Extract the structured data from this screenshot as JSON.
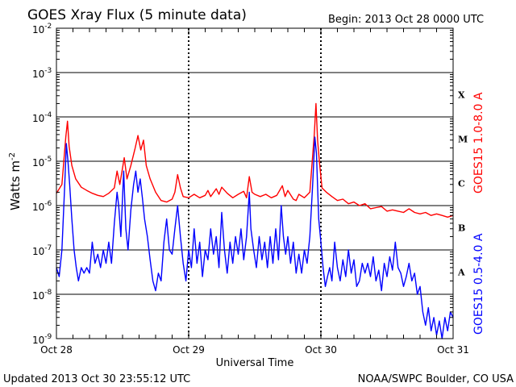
{
  "chart_data": {
    "type": "line",
    "title": "GOES Xray Flux (5 minute data)",
    "begin_label": "Begin:  2013 Oct 28 0000 UTC",
    "ylabel_base": "Watts m",
    "ylabel_exp": "-2",
    "xlabel": "Universal Time",
    "y_scale": "log",
    "ylim": [
      1e-09,
      0.01
    ],
    "xlim_hours": [
      0,
      72
    ],
    "x_ticks": [
      {
        "hour": 0,
        "label": "Oct 28"
      },
      {
        "hour": 24,
        "label": "Oct 29"
      },
      {
        "hour": 48,
        "label": "Oct 30"
      },
      {
        "hour": 72,
        "label": "Oct 31"
      }
    ],
    "y_ticks": [
      {
        "exp": -2,
        "base": "10",
        "sup": "-2"
      },
      {
        "exp": -3,
        "base": "10",
        "sup": "-3"
      },
      {
        "exp": -4,
        "base": "10",
        "sup": "-4"
      },
      {
        "exp": -5,
        "base": "10",
        "sup": "-5"
      },
      {
        "exp": -6,
        "base": "10",
        "sup": "-6"
      },
      {
        "exp": -7,
        "base": "10",
        "sup": "-7"
      },
      {
        "exp": -8,
        "base": "10",
        "sup": "-8"
      },
      {
        "exp": -9,
        "base": "10",
        "sup": "-9"
      }
    ],
    "flare_classes": [
      {
        "label": "X",
        "exp": -3.5
      },
      {
        "label": "M",
        "exp": -4.5
      },
      {
        "label": "C",
        "exp": -5.5
      },
      {
        "label": "B",
        "exp": -6.5
      },
      {
        "label": "A",
        "exp": -7.5
      }
    ],
    "grid": "horizontal at decades",
    "series": [
      {
        "name": "GOES15 1.0-8.0 A",
        "color": "#ff0000",
        "points": [
          [
            0,
            1.9e-06
          ],
          [
            1,
            3e-06
          ],
          [
            1.7,
            3.5e-05
          ],
          [
            2.0,
            8e-05
          ],
          [
            2.3,
            2.2e-05
          ],
          [
            2.8,
            8e-06
          ],
          [
            3.5,
            4e-06
          ],
          [
            4.5,
            2.6e-06
          ],
          [
            5.5,
            2.2e-06
          ],
          [
            6.5,
            1.9e-06
          ],
          [
            7.5,
            1.7e-06
          ],
          [
            8.5,
            1.6e-06
          ],
          [
            9.5,
            1.9e-06
          ],
          [
            10.5,
            2.5e-06
          ],
          [
            11.0,
            6e-06
          ],
          [
            11.5,
            3e-06
          ],
          [
            12.3,
            1.2e-05
          ],
          [
            12.8,
            4e-06
          ],
          [
            13.5,
            8e-06
          ],
          [
            14.3,
            2e-05
          ],
          [
            14.8,
            3.8e-05
          ],
          [
            15.3,
            1.8e-05
          ],
          [
            15.8,
            3e-05
          ],
          [
            16.3,
            8e-06
          ],
          [
            17.0,
            4e-06
          ],
          [
            18.0,
            2e-06
          ],
          [
            19.0,
            1.3e-06
          ],
          [
            20.0,
            1.2e-06
          ],
          [
            21.0,
            1.4e-06
          ],
          [
            21.5,
            2e-06
          ],
          [
            22.0,
            5e-06
          ],
          [
            22.5,
            2.5e-06
          ],
          [
            23.0,
            1.6e-06
          ],
          [
            24.0,
            1.5e-06
          ],
          [
            25.0,
            1.8e-06
          ],
          [
            26.0,
            1.5e-06
          ],
          [
            27.0,
            1.7e-06
          ],
          [
            27.5,
            2.2e-06
          ],
          [
            28.0,
            1.6e-06
          ],
          [
            29.0,
            2.4e-06
          ],
          [
            29.5,
            1.8e-06
          ],
          [
            30.0,
            2.6e-06
          ],
          [
            31.0,
            1.9e-06
          ],
          [
            32.0,
            1.5e-06
          ],
          [
            33.0,
            1.8e-06
          ],
          [
            34.0,
            2.1e-06
          ],
          [
            34.5,
            1.5e-06
          ],
          [
            35.0,
            4.5e-06
          ],
          [
            35.5,
            2e-06
          ],
          [
            36.0,
            1.8e-06
          ],
          [
            37.0,
            1.6e-06
          ],
          [
            38.0,
            1.8e-06
          ],
          [
            39.0,
            1.5e-06
          ],
          [
            40.0,
            1.7e-06
          ],
          [
            41.0,
            2.8e-06
          ],
          [
            41.5,
            1.6e-06
          ],
          [
            42.0,
            2.2e-06
          ],
          [
            43.0,
            1.4e-06
          ],
          [
            43.5,
            1.3e-06
          ],
          [
            44.0,
            1.8e-06
          ],
          [
            45.0,
            1.5e-06
          ],
          [
            46.0,
            2e-06
          ],
          [
            46.8,
            4e-05
          ],
          [
            47.1,
            0.0002
          ],
          [
            47.4,
            3e-05
          ],
          [
            47.8,
            8e-06
          ],
          [
            48.2,
            2.5e-06
          ],
          [
            49.0,
            2e-06
          ],
          [
            50.0,
            1.6e-06
          ],
          [
            51.0,
            1.3e-06
          ],
          [
            52.0,
            1.4e-06
          ],
          [
            53.0,
            1.1e-06
          ],
          [
            54.0,
            1.2e-06
          ],
          [
            55.0,
            1e-06
          ],
          [
            56.0,
            1.1e-06
          ],
          [
            57.0,
            8.5e-07
          ],
          [
            58.0,
            9e-07
          ],
          [
            59.0,
            9.5e-07
          ],
          [
            60.0,
            7.5e-07
          ],
          [
            61.0,
            8e-07
          ],
          [
            62.0,
            7.5e-07
          ],
          [
            63.0,
            7e-07
          ],
          [
            64.0,
            8.5e-07
          ],
          [
            65.0,
            7e-07
          ],
          [
            66.0,
            6.5e-07
          ],
          [
            67.0,
            7e-07
          ],
          [
            68.0,
            6e-07
          ],
          [
            69.0,
            6.5e-07
          ],
          [
            70.0,
            6e-07
          ],
          [
            71.0,
            5.5e-07
          ],
          [
            72.0,
            6e-07
          ]
        ]
      },
      {
        "name": "GOES15 0.5-4.0 A",
        "color": "#0000ff",
        "points": [
          [
            0,
            4e-08
          ],
          [
            0.5,
            2.5e-08
          ],
          [
            1.0,
            1e-07
          ],
          [
            1.5,
            3e-06
          ],
          [
            1.8,
            2.5e-05
          ],
          [
            2.1,
            1e-05
          ],
          [
            2.4,
            3e-06
          ],
          [
            2.8,
            5e-07
          ],
          [
            3.2,
            1e-07
          ],
          [
            3.6,
            4e-08
          ],
          [
            4.0,
            2e-08
          ],
          [
            4.5,
            4e-08
          ],
          [
            5.0,
            3e-08
          ],
          [
            5.5,
            4e-08
          ],
          [
            6.0,
            3e-08
          ],
          [
            6.5,
            1.5e-07
          ],
          [
            7.0,
            5e-08
          ],
          [
            7.5,
            8e-08
          ],
          [
            8.0,
            4e-08
          ],
          [
            8.5,
            1e-07
          ],
          [
            9.0,
            5e-08
          ],
          [
            9.5,
            1.5e-07
          ],
          [
            10.0,
            5e-08
          ],
          [
            10.5,
            4e-07
          ],
          [
            11.0,
            2e-06
          ],
          [
            11.3,
            1e-06
          ],
          [
            11.7,
            2e-07
          ],
          [
            12.2,
            6e-06
          ],
          [
            12.6,
            3e-07
          ],
          [
            13.0,
            1e-07
          ],
          [
            13.5,
            8e-07
          ],
          [
            14.0,
            3e-06
          ],
          [
            14.4,
            6e-06
          ],
          [
            14.8,
            2e-06
          ],
          [
            15.2,
            4e-06
          ],
          [
            15.6,
            1.5e-06
          ],
          [
            16.0,
            5e-07
          ],
          [
            16.5,
            2e-07
          ],
          [
            17.0,
            6e-08
          ],
          [
            17.5,
            2e-08
          ],
          [
            18.0,
            1.2e-08
          ],
          [
            18.5,
            3e-08
          ],
          [
            19.0,
            2e-08
          ],
          [
            19.5,
            1.5e-07
          ],
          [
            20.0,
            5e-07
          ],
          [
            20.5,
            1e-07
          ],
          [
            21.0,
            8e-08
          ],
          [
            21.5,
            3e-07
          ],
          [
            22.0,
            1e-06
          ],
          [
            22.5,
            2e-07
          ],
          [
            23.0,
            5e-08
          ],
          [
            23.5,
            2e-08
          ],
          [
            24.0,
            1e-07
          ],
          [
            24.5,
            4e-08
          ],
          [
            25.0,
            3e-07
          ],
          [
            25.5,
            5e-08
          ],
          [
            26.0,
            1.5e-07
          ],
          [
            26.5,
            2.5e-08
          ],
          [
            27.0,
            1e-07
          ],
          [
            27.5,
            6e-08
          ],
          [
            28.0,
            3e-07
          ],
          [
            28.5,
            8e-08
          ],
          [
            29.0,
            2e-07
          ],
          [
            29.5,
            4e-08
          ],
          [
            30.0,
            7e-07
          ],
          [
            30.5,
            1e-07
          ],
          [
            31.0,
            3e-08
          ],
          [
            31.5,
            1.5e-07
          ],
          [
            32.0,
            5e-08
          ],
          [
            32.5,
            2e-07
          ],
          [
            33.0,
            8e-08
          ],
          [
            33.5,
            3e-07
          ],
          [
            34.0,
            6e-08
          ],
          [
            34.5,
            2e-07
          ],
          [
            35.0,
            2e-06
          ],
          [
            35.3,
            3e-07
          ],
          [
            35.8,
            1e-07
          ],
          [
            36.3,
            4e-08
          ],
          [
            36.8,
            2e-07
          ],
          [
            37.3,
            6e-08
          ],
          [
            37.8,
            1.5e-07
          ],
          [
            38.3,
            4e-08
          ],
          [
            38.8,
            2e-07
          ],
          [
            39.3,
            5e-08
          ],
          [
            39.8,
            3e-07
          ],
          [
            40.3,
            6e-08
          ],
          [
            40.8,
            1e-06
          ],
          [
            41.2,
            2e-07
          ],
          [
            41.6,
            8e-08
          ],
          [
            42.0,
            2e-07
          ],
          [
            42.5,
            5e-08
          ],
          [
            43.0,
            1.5e-07
          ],
          [
            43.5,
            3e-08
          ],
          [
            44.0,
            8e-08
          ],
          [
            44.5,
            3e-08
          ],
          [
            45.0,
            1e-07
          ],
          [
            45.5,
            5e-08
          ],
          [
            46.0,
            2e-07
          ],
          [
            46.5,
            3e-06
          ],
          [
            46.9,
            3.5e-05
          ],
          [
            47.2,
            1.5e-05
          ],
          [
            47.6,
            5e-07
          ],
          [
            48.0,
            1.5e-07
          ],
          [
            48.4,
            4e-08
          ],
          [
            48.8,
            1.5e-08
          ],
          [
            49.2,
            2.5e-08
          ],
          [
            49.6,
            4e-08
          ],
          [
            50.0,
            2e-08
          ],
          [
            50.5,
            1.5e-07
          ],
          [
            51.0,
            4e-08
          ],
          [
            51.5,
            2e-08
          ],
          [
            52.0,
            6e-08
          ],
          [
            52.5,
            2.5e-08
          ],
          [
            53.0,
            1e-07
          ],
          [
            53.5,
            3e-08
          ],
          [
            54.0,
            6e-08
          ],
          [
            54.5,
            1.5e-08
          ],
          [
            55.0,
            2e-08
          ],
          [
            55.5,
            5e-08
          ],
          [
            56.0,
            3e-08
          ],
          [
            56.5,
            5e-08
          ],
          [
            57.0,
            2.5e-08
          ],
          [
            57.5,
            7e-08
          ],
          [
            58.0,
            2e-08
          ],
          [
            58.5,
            3.5e-08
          ],
          [
            59.0,
            1.2e-08
          ],
          [
            59.5,
            5e-08
          ],
          [
            60.0,
            2.5e-08
          ],
          [
            60.5,
            7e-08
          ],
          [
            61.0,
            3.5e-08
          ],
          [
            61.5,
            1.5e-07
          ],
          [
            62.0,
            4e-08
          ],
          [
            62.5,
            3e-08
          ],
          [
            63.0,
            1.5e-08
          ],
          [
            63.5,
            2.5e-08
          ],
          [
            64.0,
            5e-08
          ],
          [
            64.5,
            2e-08
          ],
          [
            65.0,
            3e-08
          ],
          [
            65.5,
            1e-08
          ],
          [
            66.0,
            1.5e-08
          ],
          [
            66.5,
            4e-09
          ],
          [
            67.0,
            2e-09
          ],
          [
            67.5,
            5e-09
          ],
          [
            68.0,
            1.5e-09
          ],
          [
            68.5,
            3e-09
          ],
          [
            69.0,
            1.2e-09
          ],
          [
            69.5,
            2.5e-09
          ],
          [
            70.0,
            1e-09
          ],
          [
            70.5,
            3e-09
          ],
          [
            71.0,
            1.5e-09
          ],
          [
            71.5,
            4e-09
          ],
          [
            72.0,
            3e-09
          ]
        ]
      }
    ]
  },
  "footer": {
    "updated": "Updated 2013 Oct 30 23:55:12 UTC",
    "source": "NOAA/SWPC Boulder, CO USA"
  }
}
